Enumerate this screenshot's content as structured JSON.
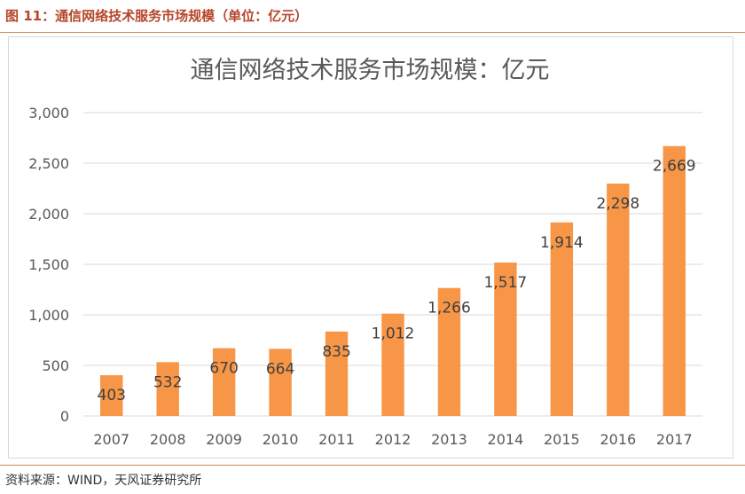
{
  "figure_caption": "图 11：通信网络技术服务市场规模（单位：亿元）",
  "source_note": "资料来源：WIND，天风证券研究所",
  "chart_data": {
    "type": "bar",
    "title": "通信网络技术服务市场规模：亿元",
    "categories": [
      "2007",
      "2008",
      "2009",
      "2010",
      "2011",
      "2012",
      "2013",
      "2014",
      "2015",
      "2016",
      "2017"
    ],
    "values": [
      403,
      532,
      670,
      664,
      835,
      1012,
      1266,
      1517,
      1914,
      2298,
      2669
    ],
    "value_labels": [
      "403",
      "532",
      "670",
      "664",
      "835",
      "1,012",
      "1,266",
      "1,517",
      "1,914",
      "2,298",
      "2,669"
    ],
    "ylim": [
      0,
      3000
    ],
    "yticks": [
      0,
      500,
      1000,
      1500,
      2000,
      2500,
      3000
    ],
    "ytick_labels": [
      "0",
      "500",
      "1,000",
      "1,500",
      "2,000",
      "2,500",
      "3,000"
    ],
    "xlabel": "",
    "ylabel": "",
    "grid": true,
    "legend": "none",
    "bar_color": "#f79646",
    "grid_color": "#d9d9d9"
  }
}
